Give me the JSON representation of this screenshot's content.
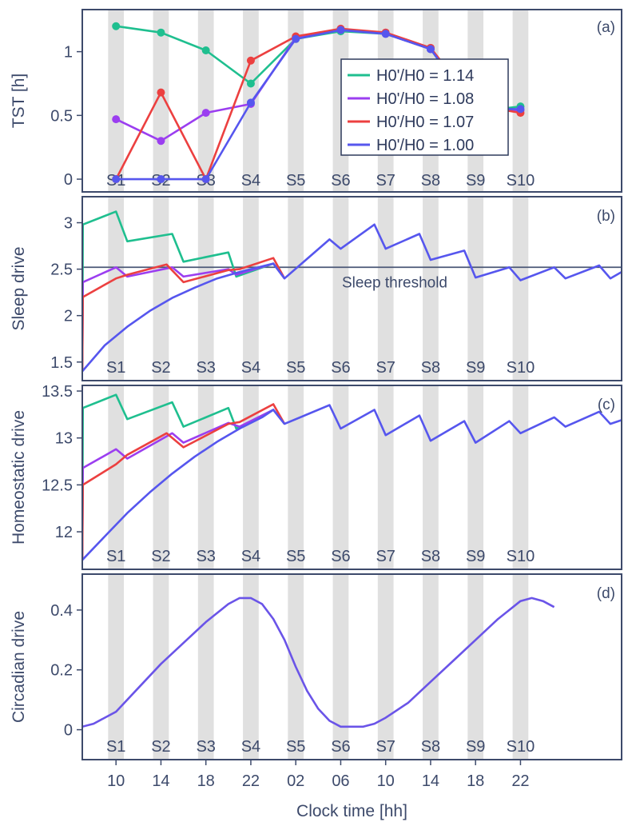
{
  "chart_data": [
    {
      "panel": "(a)",
      "type": "line",
      "ylabel": "TST [h]",
      "ylim": [
        -0.1,
        1.33
      ],
      "yticks": [
        "0",
        "0.5",
        "1"
      ],
      "yticks_values": [
        0,
        0.5,
        1
      ],
      "x_kind": "session",
      "legend_position": "center",
      "series": [
        {
          "name": "H0'/H0 = 1.14",
          "color": "#1fbf8f",
          "values": [
            1.2,
            1.15,
            1.01,
            0.75,
            1.1,
            1.16,
            1.14,
            1.02,
            0.53,
            0.57
          ]
        },
        {
          "name": "H0'/H0 = 1.08",
          "color": "#9b3ef0",
          "values": [
            0.47,
            0.3,
            0.52,
            0.59,
            1.11,
            1.17,
            1.14,
            1.02,
            0.55,
            0.54
          ]
        },
        {
          "name": "H0'/H0 = 1.07",
          "color": "#ec4040",
          "values": [
            0.0,
            0.68,
            0.0,
            0.93,
            1.12,
            1.18,
            1.15,
            1.03,
            0.58,
            0.52
          ]
        },
        {
          "name": "H0'/H0 = 1.00",
          "color": "#5656ee",
          "values": [
            0.0,
            0.0,
            0.0,
            0.6,
            1.1,
            1.17,
            1.14,
            1.02,
            0.55,
            0.55
          ]
        }
      ]
    },
    {
      "panel": "(b)",
      "type": "line",
      "ylabel": "Sleep drive",
      "ylim": [
        1.3,
        3.28
      ],
      "yticks": [
        "1.5",
        "2",
        "2.5",
        "3"
      ],
      "yticks_values": [
        1.5,
        2,
        2.5,
        3
      ],
      "threshold": {
        "value": 2.52,
        "label": "Sleep threshold"
      },
      "x_kind": "hours",
      "series": [
        {
          "name": "H0'/H0 = 1.14",
          "color": "#1fbf8f",
          "x": [
            7,
            7.05,
            10,
            11,
            15,
            16,
            20,
            20.7,
            24,
            25
          ],
          "y": [
            1.4,
            2.98,
            3.12,
            2.8,
            2.88,
            2.58,
            2.68,
            2.42,
            2.56,
            2.4
          ]
        },
        {
          "name": "H0'/H0 = 1.08",
          "color": "#9b3ef0",
          "x": [
            7,
            7.05,
            10,
            11,
            15,
            16,
            20,
            20.7,
            24,
            25
          ],
          "y": [
            1.4,
            2.36,
            2.52,
            2.42,
            2.52,
            2.42,
            2.5,
            2.44,
            2.56,
            2.4
          ]
        },
        {
          "name": "H0'/H0 = 1.07",
          "color": "#ec4040",
          "x": [
            7,
            7.05,
            10,
            11,
            14.5,
            16,
            20,
            21,
            24,
            25
          ],
          "y": [
            1.4,
            2.2,
            2.4,
            2.44,
            2.55,
            2.36,
            2.49,
            2.5,
            2.62,
            2.4
          ]
        },
        {
          "name": "H0'/H0 = 1.00",
          "color": "#5656ee",
          "x": [
            7,
            9,
            11,
            13,
            15,
            17,
            19,
            21,
            23,
            24,
            25,
            29,
            30,
            33,
            34,
            37,
            38,
            41,
            42,
            45,
            46,
            49,
            50,
            53,
            54,
            55
          ],
          "y": [
            1.4,
            1.68,
            1.88,
            2.05,
            2.19,
            2.3,
            2.4,
            2.47,
            2.53,
            2.56,
            2.4,
            2.82,
            2.72,
            2.98,
            2.72,
            2.88,
            2.6,
            2.7,
            2.41,
            2.52,
            2.38,
            2.52,
            2.4,
            2.54,
            2.4,
            2.47
          ]
        }
      ]
    },
    {
      "panel": "(c)",
      "type": "line",
      "ylabel": "Homeostatic drive",
      "ylim": [
        11.6,
        13.56
      ],
      "yticks": [
        "12",
        "12.5",
        "13",
        "13.5"
      ],
      "yticks_values": [
        12,
        12.5,
        13,
        13.5
      ],
      "x_kind": "hours",
      "series": [
        {
          "name": "H0'/H0 = 1.14",
          "color": "#1fbf8f",
          "x": [
            7,
            7.05,
            10,
            11,
            15,
            16,
            20,
            20.7,
            24,
            25
          ],
          "y": [
            11.7,
            13.32,
            13.46,
            13.2,
            13.38,
            13.12,
            13.32,
            13.1,
            13.3,
            13.15
          ]
        },
        {
          "name": "H0'/H0 = 1.08",
          "color": "#9b3ef0",
          "x": [
            7,
            7.05,
            10,
            11,
            15,
            16,
            20,
            21,
            24,
            25
          ],
          "y": [
            11.7,
            12.68,
            12.88,
            12.78,
            13.05,
            12.95,
            13.16,
            13.12,
            13.3,
            13.15
          ]
        },
        {
          "name": "H0'/H0 = 1.07",
          "color": "#ec4040",
          "x": [
            7,
            7.05,
            10,
            11,
            14.5,
            16,
            20,
            21,
            24,
            25
          ],
          "y": [
            11.7,
            12.5,
            12.72,
            12.82,
            13.05,
            12.9,
            13.15,
            13.17,
            13.36,
            13.15
          ]
        },
        {
          "name": "H0'/H0 = 1.00",
          "color": "#5656ee",
          "x": [
            7,
            9,
            11,
            13,
            15,
            17,
            19,
            21,
            23,
            24,
            25,
            29,
            30,
            33,
            34,
            37,
            38,
            41,
            42,
            45,
            46,
            49,
            50,
            53,
            54,
            55
          ],
          "y": [
            11.7,
            11.95,
            12.2,
            12.42,
            12.62,
            12.8,
            12.96,
            13.1,
            13.22,
            13.3,
            13.15,
            13.35,
            13.1,
            13.3,
            13.03,
            13.24,
            12.97,
            13.18,
            12.95,
            13.18,
            13.05,
            13.22,
            13.12,
            13.28,
            13.15,
            13.19
          ]
        }
      ]
    },
    {
      "panel": "(d)",
      "type": "line",
      "ylabel": "Circadian drive",
      "ylim": [
        -0.1,
        0.52
      ],
      "yticks": [
        "0",
        "0.2",
        "0.4"
      ],
      "yticks_values": [
        0,
        0.2,
        0.4
      ],
      "x_kind": "hours",
      "series": [
        {
          "name": "Circadian drive",
          "color": "#6a54e8",
          "x": [
            7,
            8,
            10,
            12,
            14,
            16,
            18,
            20,
            21,
            22,
            23,
            24,
            25,
            26,
            27,
            28,
            29,
            30,
            31,
            32,
            33,
            34,
            36,
            38,
            40,
            42,
            44,
            45,
            46,
            47,
            48,
            49
          ],
          "y": [
            0.01,
            0.02,
            0.06,
            0.14,
            0.22,
            0.29,
            0.36,
            0.42,
            0.44,
            0.44,
            0.42,
            0.37,
            0.3,
            0.21,
            0.13,
            0.07,
            0.03,
            0.01,
            0.01,
            0.01,
            0.02,
            0.04,
            0.09,
            0.16,
            0.23,
            0.3,
            0.37,
            0.4,
            0.43,
            0.44,
            0.43,
            0.41
          ]
        }
      ]
    }
  ],
  "x_axis": {
    "label": "Clock time [hh]",
    "range_hours": [
      7,
      55
    ],
    "tick_labels": [
      "10",
      "14",
      "18",
      "22",
      "02",
      "06",
      "10",
      "14",
      "18",
      "22"
    ],
    "tick_hours": [
      10,
      14,
      18,
      22,
      26,
      30,
      34,
      38,
      42,
      46
    ]
  },
  "sessions": {
    "labels": [
      "S1",
      "S2",
      "S3",
      "S4",
      "S5",
      "S6",
      "S7",
      "S8",
      "S9",
      "S10"
    ],
    "center_hours": [
      10,
      14,
      18,
      22,
      26,
      30,
      34,
      38,
      42,
      46
    ],
    "band_width_hours": 1.4,
    "band_color": "#e0e0e0"
  },
  "style": {
    "axis_color": "#3d4a6b",
    "threshold_color": "#4b5877"
  }
}
